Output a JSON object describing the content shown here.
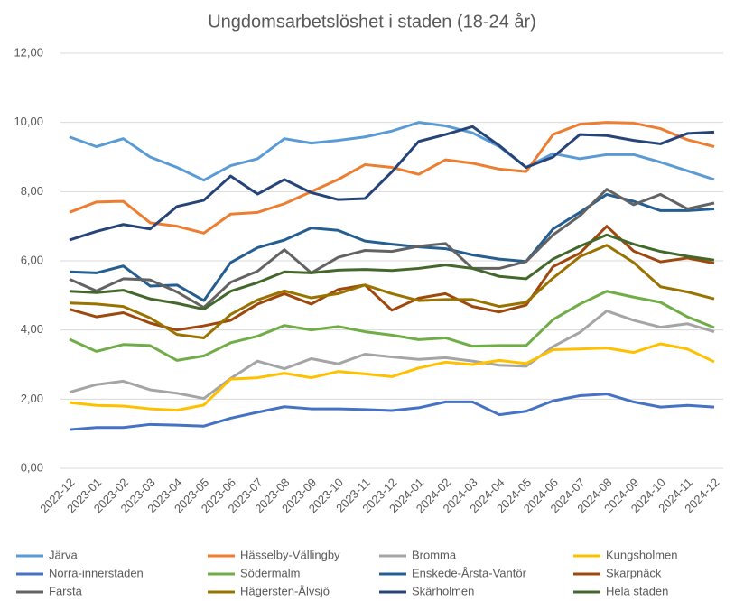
{
  "chart_data": {
    "type": "line",
    "title": "Ungdomsarbetslöshet i staden (18-24 år)",
    "categories": [
      "2022-12",
      "2023-01",
      "2023-02",
      "2023-03",
      "2023-04",
      "2023-05",
      "2023-06",
      "2023-07",
      "2023-08",
      "2023-09",
      "2023-10",
      "2023-11",
      "2023-12",
      "2024-01",
      "2024-02",
      "2024-03",
      "2024-04",
      "2024-05",
      "2024-06",
      "2024-07",
      "2024-08",
      "2024-09",
      "2024-10",
      "2024-11",
      "2024-12"
    ],
    "ylim": [
      0,
      12
    ],
    "yticks": [
      {
        "value": 0,
        "label": "0,00"
      },
      {
        "value": 2,
        "label": "2,00"
      },
      {
        "value": 4,
        "label": "4,00"
      },
      {
        "value": 6,
        "label": "6,00"
      },
      {
        "value": 8,
        "label": "8,00"
      },
      {
        "value": 10,
        "label": "10,00"
      },
      {
        "value": 12,
        "label": "12,00"
      }
    ],
    "grid": true,
    "legend": "bottom",
    "series": [
      {
        "name": "Järva",
        "color": "#5b9bd5",
        "values": [
          9.58,
          9.3,
          9.53,
          9.0,
          8.7,
          8.33,
          8.75,
          8.95,
          9.53,
          9.4,
          9.48,
          9.58,
          9.75,
          10.0,
          9.9,
          9.7,
          9.3,
          8.7,
          9.1,
          8.95,
          9.07,
          9.07,
          8.85,
          8.6,
          8.35
        ]
      },
      {
        "name": "Hässelby-Vällingby",
        "color": "#ed7d31",
        "values": [
          7.4,
          7.7,
          7.72,
          7.1,
          7.0,
          6.8,
          7.35,
          7.4,
          7.65,
          8.0,
          8.35,
          8.78,
          8.7,
          8.5,
          8.92,
          8.82,
          8.65,
          8.58,
          9.65,
          9.95,
          10.0,
          9.98,
          9.82,
          9.5,
          9.3
        ]
      },
      {
        "name": "Bromma",
        "color": "#a5a5a5",
        "values": [
          2.2,
          2.42,
          2.52,
          2.27,
          2.17,
          2.02,
          2.6,
          3.1,
          2.88,
          3.17,
          3.02,
          3.3,
          3.22,
          3.15,
          3.2,
          3.1,
          2.98,
          2.95,
          3.52,
          3.93,
          4.55,
          4.28,
          4.08,
          4.18,
          3.95
        ]
      },
      {
        "name": "Kungsholmen",
        "color": "#ffc000",
        "values": [
          1.9,
          1.82,
          1.8,
          1.72,
          1.68,
          1.83,
          2.58,
          2.62,
          2.75,
          2.62,
          2.8,
          2.73,
          2.65,
          2.9,
          3.07,
          3.0,
          3.12,
          3.03,
          3.43,
          3.45,
          3.48,
          3.35,
          3.6,
          3.45,
          3.08
        ]
      },
      {
        "name": "Norra-innerstaden",
        "color": "#4472c4",
        "values": [
          1.12,
          1.18,
          1.18,
          1.27,
          1.25,
          1.22,
          1.45,
          1.62,
          1.78,
          1.72,
          1.72,
          1.7,
          1.67,
          1.75,
          1.92,
          1.92,
          1.55,
          1.65,
          1.95,
          2.1,
          2.15,
          1.92,
          1.77,
          1.82,
          1.77
        ]
      },
      {
        "name": "Södermalm",
        "color": "#70ad47",
        "values": [
          3.73,
          3.38,
          3.58,
          3.55,
          3.12,
          3.25,
          3.63,
          3.82,
          4.13,
          4.0,
          4.1,
          3.95,
          3.85,
          3.72,
          3.77,
          3.53,
          3.55,
          3.55,
          4.3,
          4.75,
          5.12,
          4.95,
          4.8,
          4.38,
          4.07
        ]
      },
      {
        "name": "Enskede-Årsta-Vantör",
        "color": "#255e91",
        "values": [
          5.68,
          5.65,
          5.85,
          5.27,
          5.3,
          4.85,
          5.95,
          6.38,
          6.6,
          6.95,
          6.88,
          6.57,
          6.48,
          6.4,
          6.35,
          6.17,
          6.05,
          5.98,
          6.92,
          7.4,
          7.92,
          7.72,
          7.45,
          7.45,
          7.5
        ]
      },
      {
        "name": "Skarpnäck",
        "color": "#9e480e",
        "values": [
          4.6,
          4.38,
          4.5,
          4.2,
          4.0,
          4.12,
          4.28,
          4.75,
          5.05,
          4.75,
          5.17,
          5.3,
          4.57,
          4.92,
          5.05,
          4.68,
          4.52,
          4.72,
          5.83,
          6.22,
          7.0,
          6.28,
          5.97,
          6.08,
          5.93
        ]
      },
      {
        "name": "Farsta",
        "color": "#636363",
        "values": [
          5.47,
          5.13,
          5.48,
          5.45,
          5.1,
          4.65,
          5.38,
          5.7,
          6.32,
          5.65,
          6.1,
          6.3,
          6.27,
          6.42,
          6.5,
          5.78,
          5.78,
          5.98,
          6.75,
          7.3,
          8.07,
          7.62,
          7.92,
          7.5,
          7.67
        ]
      },
      {
        "name": "Hägersten-Älvsjö",
        "color": "#997300",
        "values": [
          4.78,
          4.75,
          4.68,
          4.35,
          3.87,
          3.77,
          4.45,
          4.87,
          5.13,
          4.93,
          5.05,
          5.3,
          5.05,
          4.85,
          4.88,
          4.88,
          4.68,
          4.8,
          5.5,
          6.12,
          6.45,
          5.95,
          5.25,
          5.1,
          4.9
        ]
      },
      {
        "name": "Skärholmen",
        "color": "#264478",
        "values": [
          6.6,
          6.85,
          7.05,
          6.92,
          7.57,
          7.75,
          8.45,
          7.93,
          8.35,
          7.97,
          7.77,
          7.8,
          8.57,
          9.45,
          9.65,
          9.88,
          9.33,
          8.7,
          9.0,
          9.65,
          9.62,
          9.48,
          9.38,
          9.68,
          9.72
        ]
      },
      {
        "name": "Hela staden",
        "color": "#43682b",
        "values": [
          5.12,
          5.08,
          5.15,
          4.9,
          4.77,
          4.6,
          5.12,
          5.37,
          5.68,
          5.65,
          5.73,
          5.75,
          5.72,
          5.78,
          5.88,
          5.78,
          5.55,
          5.48,
          6.05,
          6.42,
          6.75,
          6.48,
          6.27,
          6.13,
          6.02
        ]
      }
    ]
  }
}
